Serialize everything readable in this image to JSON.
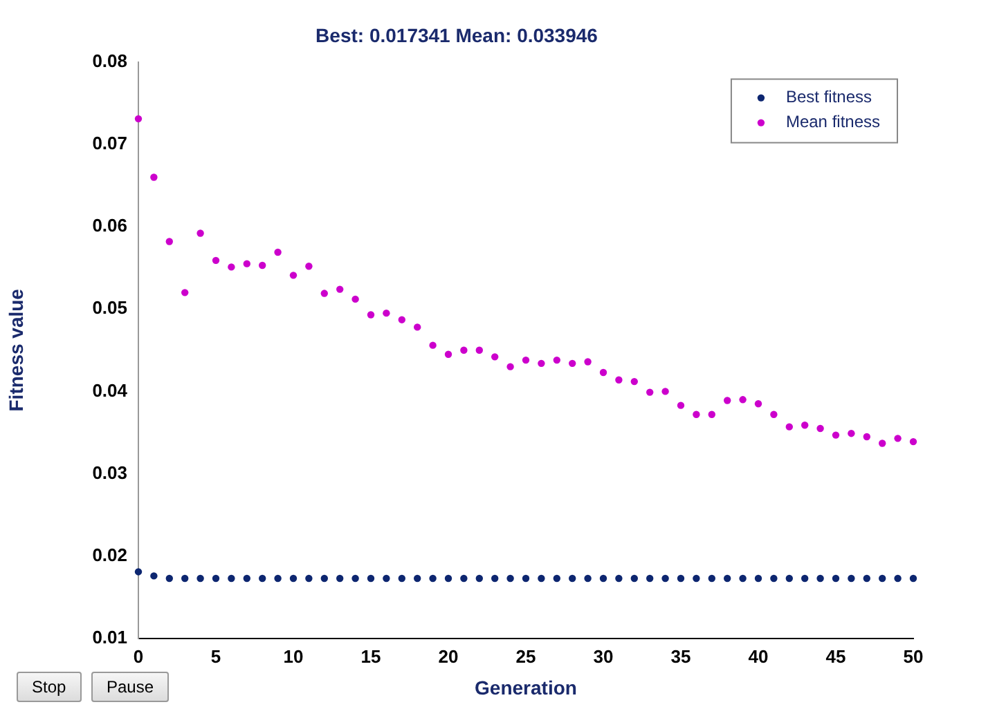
{
  "chart_data": {
    "type": "scatter",
    "title": "Best: 0.017341 Mean: 0.033946",
    "xlabel": "Generation",
    "ylabel": "Fitness value",
    "x": [
      0,
      1,
      2,
      3,
      4,
      5,
      6,
      7,
      8,
      9,
      10,
      11,
      12,
      13,
      14,
      15,
      16,
      17,
      18,
      19,
      20,
      21,
      22,
      23,
      24,
      25,
      26,
      27,
      28,
      29,
      30,
      31,
      32,
      33,
      34,
      35,
      36,
      37,
      38,
      39,
      40,
      41,
      42,
      43,
      44,
      45,
      46,
      47,
      48,
      49,
      50
    ],
    "series": [
      {
        "name": "Best fitness",
        "color": "#0d2670",
        "values": [
          0.0181,
          0.0176,
          0.0173,
          0.0173,
          0.0173,
          0.0173,
          0.0173,
          0.0173,
          0.0173,
          0.0173,
          0.0173,
          0.0173,
          0.0173,
          0.0173,
          0.0173,
          0.0173,
          0.0173,
          0.0173,
          0.0173,
          0.0173,
          0.0173,
          0.0173,
          0.0173,
          0.0173,
          0.0173,
          0.0173,
          0.0173,
          0.0173,
          0.0173,
          0.0173,
          0.0173,
          0.0173,
          0.0173,
          0.0173,
          0.0173,
          0.0173,
          0.0173,
          0.0173,
          0.0173,
          0.0173,
          0.0173,
          0.0173,
          0.0173,
          0.0173,
          0.0173,
          0.0173,
          0.0173,
          0.0173,
          0.0173,
          0.0173,
          0.0173
        ]
      },
      {
        "name": "Mean fitness",
        "color": "#cc00cc",
        "values": [
          0.0731,
          0.066,
          0.0582,
          0.052,
          0.0592,
          0.0559,
          0.0551,
          0.0555,
          0.0553,
          0.0569,
          0.0541,
          0.0552,
          0.0519,
          0.0524,
          0.0512,
          0.0493,
          0.0495,
          0.0487,
          0.0478,
          0.0456,
          0.0445,
          0.045,
          0.045,
          0.0442,
          0.043,
          0.0438,
          0.0434,
          0.0438,
          0.0434,
          0.0436,
          0.0423,
          0.0414,
          0.0412,
          0.0399,
          0.04,
          0.0383,
          0.0372,
          0.0372,
          0.0389,
          0.039,
          0.0385,
          0.0372,
          0.0357,
          0.0359,
          0.0355,
          0.0347,
          0.0349,
          0.0345,
          0.0337,
          0.0343,
          0.0339
        ]
      }
    ],
    "xlim": [
      0,
      50
    ],
    "xticks": [
      0,
      5,
      10,
      15,
      20,
      25,
      30,
      35,
      40,
      45,
      50
    ],
    "ylim": [
      0.01,
      0.08
    ],
    "yticks": [
      0.01,
      0.02,
      0.03,
      0.04,
      0.05,
      0.06,
      0.07,
      0.08
    ],
    "grid": false,
    "legend": "top right",
    "marker": "circle",
    "annotations": [
      "Stop",
      "Pause"
    ]
  }
}
